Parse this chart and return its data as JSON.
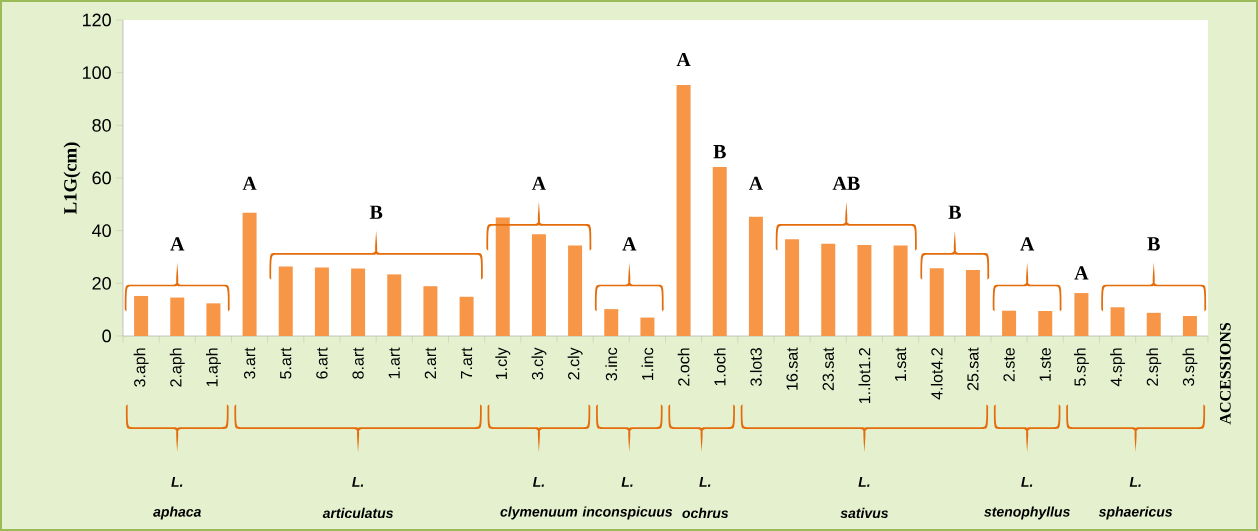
{
  "chart_data": {
    "type": "bar",
    "ylabel": "L1G(cm)",
    "color": "#f79646",
    "categories": [
      "3.aph",
      "2.aph",
      "1.aph",
      "3.art",
      "5.art",
      "6.art",
      "8.art",
      "1.art",
      "2.art",
      "7.art",
      "1.cly",
      "3.cly",
      "2.cly",
      "3.inc",
      "1.inc",
      "2.och",
      "1.och",
      "3.lot3",
      "16.sat",
      "23.sat",
      "1..lot1.2",
      "1.sat",
      "4.lot4.2",
      "25.sat",
      "2.ste",
      "1.ste",
      "5.sph",
      "4.sph",
      "2.sph",
      "3.sph"
    ],
    "values": [
      15.2,
      14.6,
      12.4,
      46.8,
      26.4,
      26.0,
      25.6,
      23.4,
      18.9,
      14.9,
      45.0,
      38.6,
      34.4,
      10.2,
      7.0,
      95.3,
      64.2,
      45.3,
      36.7,
      35.0,
      34.6,
      34.4,
      25.7,
      25.1,
      9.6,
      9.5,
      16.3,
      10.9,
      8.8,
      7.6
    ],
    "ylim": [
      0,
      120
    ],
    "yticks": [
      0,
      20,
      40,
      60,
      80,
      100,
      120
    ],
    "annotations": [
      "A",
      "A",
      "B",
      "A",
      "A",
      "A",
      "B",
      "A",
      "AB",
      "B",
      "A",
      "A",
      "B",
      "ACCESSIONS",
      "L.",
      "aphaca",
      "L.",
      "articulatus",
      "L.",
      "clymenuum",
      "L.",
      "inconspicuus",
      "L.",
      "ochrus",
      "L.",
      "sativus",
      "L.",
      "stenophyllus",
      "L.",
      "sphaericus"
    ]
  }
}
